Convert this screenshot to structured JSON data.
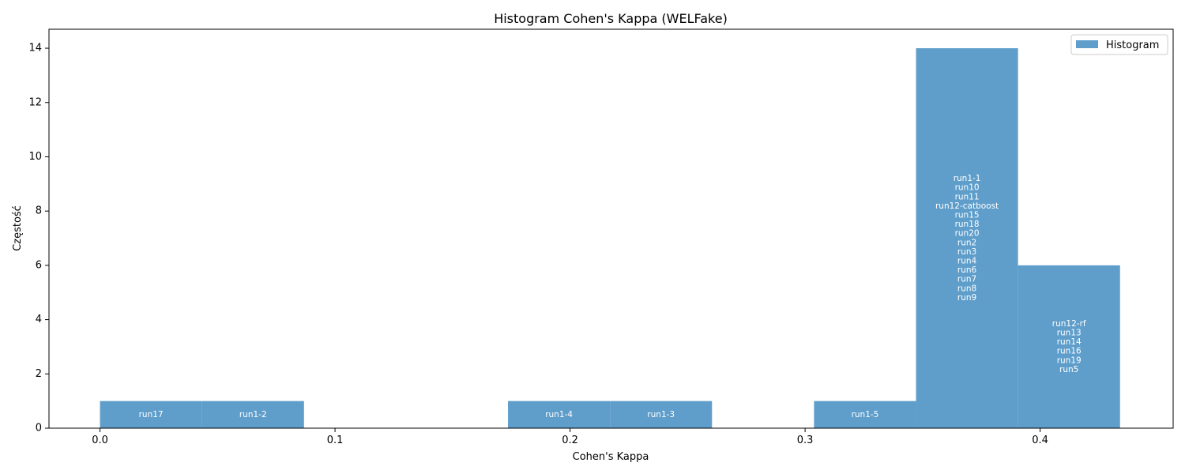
{
  "chart_data": {
    "type": "bar",
    "title": "Histogram Cohen's Kappa (WELFake)",
    "xlabel": "Cohen's Kappa",
    "ylabel": "Częstość",
    "xlim": [
      -0.0217,
      0.4566
    ],
    "ylim": [
      0,
      14.7
    ],
    "xticks": [
      0.0,
      0.1,
      0.2,
      0.3,
      0.4
    ],
    "xtick_labels": [
      "0.0",
      "0.1",
      "0.2",
      "0.3",
      "0.4"
    ],
    "yticks": [
      0,
      2,
      4,
      6,
      8,
      10,
      12,
      14
    ],
    "ytick_labels": [
      "0",
      "2",
      "4",
      "6",
      "8",
      "10",
      "12",
      "14"
    ],
    "grid": false,
    "bar_color": "#5f9ecb",
    "legend": {
      "placement": "top-right",
      "entries": [
        "Histogram"
      ]
    },
    "bins": [
      {
        "x0": 0.0,
        "x1": 0.0434,
        "count": 1,
        "labels": [
          "run17"
        ]
      },
      {
        "x0": 0.0434,
        "x1": 0.0868,
        "count": 1,
        "labels": [
          "run1-2"
        ]
      },
      {
        "x0": 0.0868,
        "x1": 0.1302,
        "count": 0,
        "labels": []
      },
      {
        "x0": 0.1302,
        "x1": 0.1736,
        "count": 0,
        "labels": []
      },
      {
        "x0": 0.1736,
        "x1": 0.217,
        "count": 1,
        "labels": [
          "run1-4"
        ]
      },
      {
        "x0": 0.217,
        "x1": 0.2604,
        "count": 1,
        "labels": [
          "run1-3"
        ]
      },
      {
        "x0": 0.2604,
        "x1": 0.3038,
        "count": 0,
        "labels": []
      },
      {
        "x0": 0.3038,
        "x1": 0.3472,
        "count": 1,
        "labels": [
          "run1-5"
        ]
      },
      {
        "x0": 0.3472,
        "x1": 0.3906,
        "count": 14,
        "labels": [
          "run1-1",
          "run10",
          "run11",
          "run12-catboost",
          "run15",
          "run18",
          "run20",
          "run2",
          "run3",
          "run4",
          "run6",
          "run7",
          "run8",
          "run9"
        ]
      },
      {
        "x0": 0.3906,
        "x1": 0.434,
        "count": 6,
        "labels": [
          "run12-rf",
          "run13",
          "run14",
          "run16",
          "run19",
          "run5"
        ]
      }
    ]
  }
}
